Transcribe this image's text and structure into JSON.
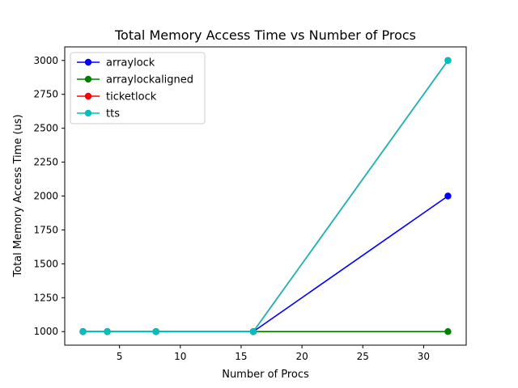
{
  "chart_data": {
    "type": "line",
    "title": "Total Memory Access Time vs Number of Procs",
    "xlabel": "Number of Procs",
    "ylabel": "Total Memory Access Time (us)",
    "xlim": [
      0.5,
      33.5
    ],
    "ylim": [
      900,
      3100
    ],
    "xticks": [
      5,
      10,
      15,
      20,
      25,
      30
    ],
    "yticks": [
      1000,
      1250,
      1500,
      1750,
      2000,
      2250,
      2500,
      2750,
      3000
    ],
    "x": [
      2,
      4,
      8,
      16,
      32
    ],
    "grid": false,
    "legend_position": "top-left",
    "series": [
      {
        "name": "arraylock",
        "color": "#0000ff",
        "values": [
          1000,
          1000,
          1000,
          1000,
          2000
        ]
      },
      {
        "name": "arraylockaligned",
        "color": "#008000",
        "values": [
          1000,
          1000,
          1000,
          1000,
          1000
        ]
      },
      {
        "name": "ticketlock",
        "color": "#ff0000",
        "values": [
          1000,
          1000,
          1000,
          1000,
          3000
        ]
      },
      {
        "name": "tts",
        "color": "#00bfbf",
        "values": [
          1000,
          1000,
          1000,
          1000,
          3000
        ]
      }
    ]
  }
}
